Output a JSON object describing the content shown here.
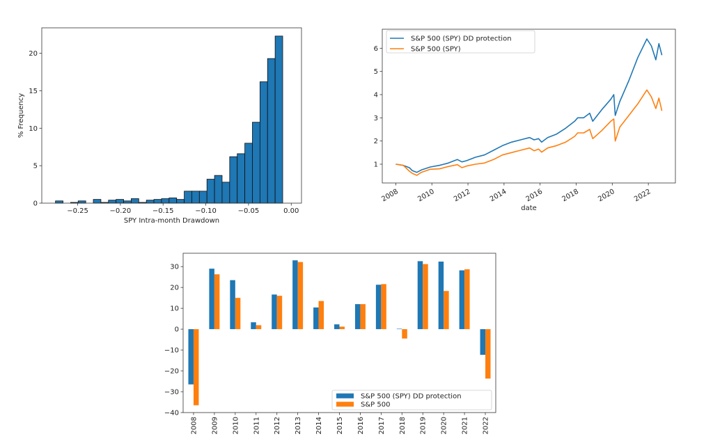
{
  "colors": {
    "blue": "#1f77b4",
    "orange": "#ff7f0e",
    "edge": "#111111"
  },
  "chart_data": [
    {
      "type": "bar",
      "subtype": "histogram",
      "xlabel": "SPY Intra-month Drawdown",
      "ylabel": "% Frequency",
      "xlim": [
        -0.292,
        0.012
      ],
      "ylim": [
        0,
        23.4
      ],
      "xticks": [
        -0.25,
        -0.2,
        -0.15,
        -0.1,
        -0.05,
        0.0
      ],
      "xtick_labels": [
        "−0.25",
        "−0.20",
        "−0.15",
        "−0.10",
        "−0.05",
        "0.00"
      ],
      "yticks": [
        0,
        5,
        10,
        15,
        20
      ],
      "bin_range": [
        -0.276,
        -0.01
      ],
      "values": [
        0.3,
        0,
        0.1,
        0.3,
        0,
        0.5,
        0.1,
        0.4,
        0.5,
        0.3,
        0.6,
        0.1,
        0.4,
        0.5,
        0.6,
        0.7,
        0.5,
        1.6,
        1.6,
        1.6,
        3.2,
        3.7,
        2.8,
        6.2,
        6.6,
        8.0,
        10.8,
        16.2,
        19.3,
        22.3
      ],
      "grid": false
    },
    {
      "type": "line",
      "xlabel": "date",
      "ylabel": "",
      "xlim": [
        "2007-04",
        "2023-07"
      ],
      "ylim": [
        0.19,
        6.82
      ],
      "xticks": [
        "2008",
        "2010",
        "2012",
        "2014",
        "2016",
        "2018",
        "2020",
        "2022"
      ],
      "yticks": [
        1,
        2,
        3,
        4,
        5,
        6
      ],
      "legend": "top-left",
      "grid": false,
      "x": [
        "2008-01",
        "2008-06",
        "2008-10",
        "2008-12",
        "2009-03",
        "2009-06",
        "2009-12",
        "2010-06",
        "2010-12",
        "2011-06",
        "2011-09",
        "2011-12",
        "2012-06",
        "2012-12",
        "2013-06",
        "2013-12",
        "2014-06",
        "2014-12",
        "2015-06",
        "2015-09",
        "2015-12",
        "2016-02",
        "2016-06",
        "2016-12",
        "2017-06",
        "2017-12",
        "2018-02",
        "2018-06",
        "2018-10",
        "2018-12",
        "2019-06",
        "2019-12",
        "2020-02",
        "2020-03",
        "2020-06",
        "2020-12",
        "2021-06",
        "2021-12",
        "2022-03",
        "2022-06",
        "2022-08",
        "2022-10"
      ],
      "series": [
        {
          "name": "S&P 500 (SPY) DD protection",
          "color": "#1f77b4",
          "values": [
            1.0,
            0.95,
            0.85,
            0.72,
            0.65,
            0.75,
            0.88,
            0.95,
            1.05,
            1.2,
            1.1,
            1.15,
            1.3,
            1.4,
            1.6,
            1.8,
            1.95,
            2.05,
            2.15,
            2.05,
            2.1,
            1.95,
            2.15,
            2.3,
            2.55,
            2.85,
            3.0,
            3.0,
            3.2,
            2.85,
            3.35,
            3.8,
            4.0,
            3.1,
            3.7,
            4.6,
            5.6,
            6.4,
            6.1,
            5.5,
            6.2,
            5.7
          ]
        },
        {
          "name": "S&P 500 (SPY)",
          "color": "#ff7f0e",
          "values": [
            1.0,
            0.95,
            0.7,
            0.6,
            0.52,
            0.65,
            0.78,
            0.8,
            0.9,
            0.98,
            0.85,
            0.92,
            1.0,
            1.05,
            1.2,
            1.4,
            1.5,
            1.6,
            1.7,
            1.58,
            1.65,
            1.52,
            1.7,
            1.8,
            1.95,
            2.2,
            2.35,
            2.35,
            2.5,
            2.1,
            2.45,
            2.85,
            2.95,
            2.0,
            2.6,
            3.1,
            3.6,
            4.2,
            3.9,
            3.4,
            3.85,
            3.3
          ]
        }
      ]
    },
    {
      "type": "bar",
      "xlabel": "",
      "ylabel": "",
      "ylim": [
        -40,
        36.4
      ],
      "yticks": [
        -40,
        -30,
        -20,
        -10,
        0,
        10,
        20,
        30
      ],
      "ytick_labels": [
        "−40",
        "−30",
        "−20",
        "−10",
        "0",
        "10",
        "20",
        "30"
      ],
      "legend": "lower-right",
      "grid": false,
      "categories": [
        "2008",
        "2009",
        "2010",
        "2011",
        "2012",
        "2013",
        "2014",
        "2015",
        "2016",
        "2017",
        "2018",
        "2019",
        "2020",
        "2021",
        "2022"
      ],
      "series": [
        {
          "name": "S&P 500 (SPY) DD protection",
          "color": "#1f77b4",
          "values": [
            -26.5,
            29.0,
            23.5,
            3.3,
            16.6,
            33.0,
            10.4,
            2.3,
            12.0,
            21.3,
            0.2,
            32.6,
            32.4,
            28.2,
            -12.3
          ]
        },
        {
          "name": "S&P 500",
          "color": "#ff7f0e",
          "values": [
            -36.5,
            26.3,
            15.0,
            1.9,
            16.0,
            32.2,
            13.5,
            1.2,
            12.0,
            21.6,
            -4.5,
            31.2,
            18.3,
            28.7,
            -23.7
          ]
        }
      ]
    }
  ]
}
